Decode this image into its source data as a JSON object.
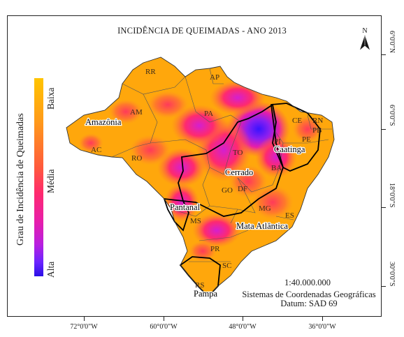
{
  "title": "INCIDÊNCIA DE QUEIMADAS - ANO 2013",
  "legend": {
    "title": "Grau de Incidência de Queimadas",
    "low": "Baixa",
    "mid": "Média",
    "high": "Alta",
    "colors": [
      "#ffc400",
      "#ff9a1a",
      "#ff2a6e",
      "#b81fe0",
      "#2a0fe6"
    ]
  },
  "north_arrow": "N",
  "scale": "1:40.000.000",
  "crs_line1": "Sistemas de Coordenadas Geográficas",
  "crs_line2": "Datum: SAD 69",
  "x_ticks": [
    "72°0'0\"W",
    "60°0'0\"W",
    "48°0'0\"W",
    "36°0'0\"W"
  ],
  "y_ticks": [
    "6°0'0\"N",
    "6°0'0\"S",
    "18°0'0\"S",
    "30°0'0\"S"
  ],
  "states": {
    "rr": "RR",
    "ap": "AP",
    "am": "AM",
    "pa": "PA",
    "ac": "AC",
    "ro": "RO",
    "to": "TO",
    "ce": "CE",
    "rn": "RN",
    "pb": "PB",
    "pe": "PE",
    "pi": "PI",
    "ba": "BA",
    "go": "GO",
    "df": "DF",
    "mg": "MG",
    "ms": "MS",
    "es": "ES",
    "pr": "PR",
    "sc": "SC",
    "rs": "RS"
  },
  "biomes": {
    "amazonia": "Amazônia",
    "cerrado": "Cerrado",
    "caatinga": "Caatinga",
    "pantanal": "Pantanal",
    "mata_atlantica": "Mata Atlântica",
    "pampa": "Pampa"
  }
}
